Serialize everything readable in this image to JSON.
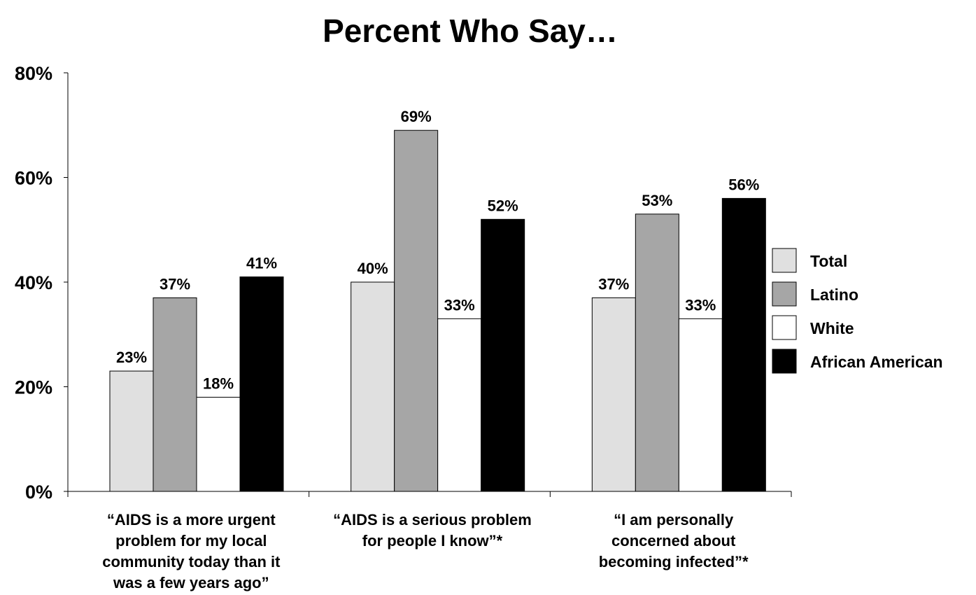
{
  "chart_data": {
    "type": "bar",
    "title": "Percent Who Say…",
    "xlabel": "",
    "ylabel": "",
    "ylim": [
      0,
      80
    ],
    "yticks": [
      "0%",
      "20%",
      "40%",
      "60%",
      "80%"
    ],
    "ytick_values": [
      0,
      20,
      40,
      60,
      80
    ],
    "categories": [
      [
        "“AIDS is a more urgent",
        "problem for my local",
        "community today than it",
        "was a few years ago”"
      ],
      [
        "“AIDS is a serious problem",
        "for people I know”*"
      ],
      [
        "“I am personally",
        "concerned about",
        "becoming infected”*"
      ]
    ],
    "series": [
      {
        "name": "Total",
        "color": "#e0e0e0",
        "values": [
          23,
          40,
          37
        ],
        "labels": [
          "23%",
          "40%",
          "37%"
        ]
      },
      {
        "name": "Latino",
        "color": "#a6a6a6",
        "values": [
          37,
          69,
          53
        ],
        "labels": [
          "37%",
          "69%",
          "53%"
        ]
      },
      {
        "name": "White",
        "color": "#ffffff",
        "values": [
          18,
          33,
          33
        ],
        "labels": [
          "18%",
          "33%",
          "33%"
        ]
      },
      {
        "name": "African American",
        "color": "#000000",
        "values": [
          41,
          52,
          56
        ],
        "labels": [
          "41%",
          "52%",
          "56%"
        ]
      }
    ],
    "legend": "right",
    "grid": false
  }
}
